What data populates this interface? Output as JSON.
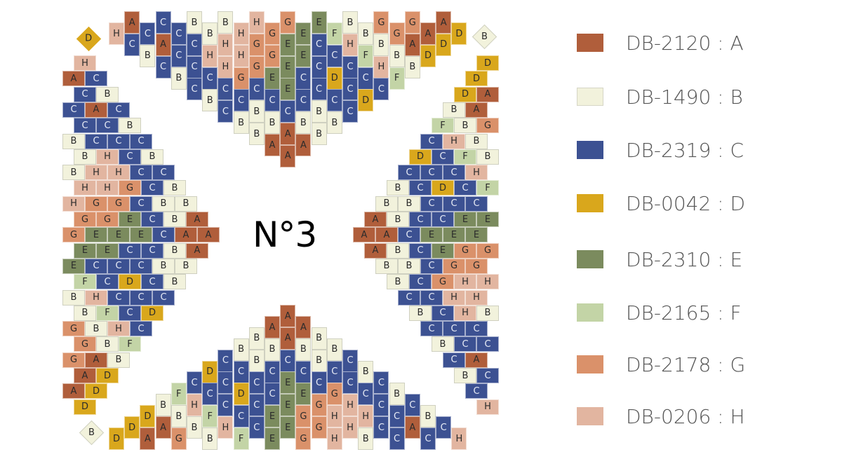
{
  "title": "N°3",
  "colors": {
    "A": "#b05e3b",
    "B": "#f2f2dc",
    "C": "#3c5192",
    "D": "#d9a71c",
    "E": "#7b8b5e",
    "F": "#c3d4a6",
    "G": "#da916a",
    "H": "#e2b5a0"
  },
  "legend": [
    {
      "code": "DB-2120",
      "letter": "A",
      "label": "DB-2120 : A"
    },
    {
      "code": "DB-1490",
      "letter": "B",
      "label": "DB-1490 : B"
    },
    {
      "code": "DB-2319",
      "letter": "C",
      "label": "DB-2319 : C"
    },
    {
      "code": "DB-0042",
      "letter": "D",
      "label": "DB-0042 : D"
    },
    {
      "code": "DB-2310",
      "letter": "E",
      "label": "DB-2310 : E"
    },
    {
      "code": "DB-2165",
      "letter": "F",
      "label": "DB-2165 : F"
    },
    {
      "code": "DB-2178",
      "letter": "G",
      "label": "DB-2178 : G"
    },
    {
      "code": "DB-0206",
      "letter": "H",
      "label": "DB-0206 : H"
    }
  ],
  "corner_beads": [
    {
      "corner": "top-left",
      "letter": "D"
    },
    {
      "corner": "top-right",
      "letter": "B"
    },
    {
      "corner": "bottom-left",
      "letter": "B"
    }
  ],
  "sections": {
    "top_columns": [
      "H",
      "AC",
      "CB",
      "CAC",
      "CCB",
      "BCCC",
      "BHCB",
      "BHHCC",
      "HHGCB",
      "HGGCBB",
      "GGECBA",
      "GEEECAA",
      "EECCBA",
      "ECCCBB",
      "FCDCB",
      "BHCCC",
      "BFCD",
      "GBHC",
      "GBF",
      "GAB",
      "AD",
      "AD",
      "D"
    ],
    "bottom_columns": [
      "D",
      "D",
      "DA",
      "BA",
      "FBG",
      "CHB",
      "DCFB",
      "CCCH",
      "BCDCF",
      "BBCCC",
      "ABCCEE",
      "AACEEE",
      "ABCEGG",
      "BBCGG",
      "BCGHH",
      "CCHH",
      "BCHB",
      "CCC",
      "BCC",
      "CA",
      "BC",
      "C",
      "H"
    ],
    "left_rows": [
      "H",
      "AC",
      "CB",
      "CAC",
      "CCB",
      "BCCC",
      "BHCB",
      "BHHCC",
      "HHGCB",
      "HGGCBB",
      "GGECBA",
      "GEEECAA",
      "EECCBA",
      "ECCCBB",
      "FCDCB",
      "BHCCC",
      "BFCD",
      "GBHC",
      "GBF",
      "GAB",
      "AD",
      "AD",
      "D"
    ],
    "right_rows": [
      "D",
      "D",
      "DA",
      "BA",
      "FBG",
      "CHB",
      "DCFB",
      "CCCH",
      "BCDCF",
      "BBCCC",
      "ABCCEE",
      "AACEEE",
      "ABCEGG",
      "BBCGG",
      "BCGHH",
      "CCHH",
      "BCHB",
      "CCC",
      "BCC",
      "CA",
      "BC",
      "C",
      "H"
    ]
  }
}
